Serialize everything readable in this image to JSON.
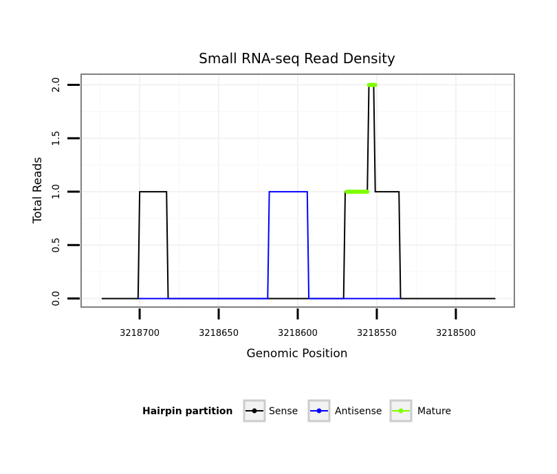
{
  "chart_data": {
    "type": "line",
    "title": "Small RNA-seq Read Density",
    "xlabel": "Genomic Position",
    "ylabel": "Total Reads",
    "x_reversed": true,
    "xlim": [
      3218737,
      3218463
    ],
    "ylim": [
      -0.08,
      2.1
    ],
    "x_ticks": [
      3218700,
      3218650,
      3218600,
      3218550,
      3218500
    ],
    "x_tick_labels": [
      "3218700",
      "3218650",
      "3218600",
      "3218550",
      "3218500"
    ],
    "y_ticks": [
      0,
      0.5,
      1,
      1.5,
      2
    ],
    "y_tick_labels": [
      "0.0",
      "0.5",
      "1.0",
      "1.5",
      "2.0"
    ],
    "grid": true,
    "legend": {
      "title": "Hairpin partition",
      "position": "bottom",
      "entries": [
        "Sense",
        "Antisense",
        "Mature"
      ]
    },
    "series": [
      {
        "name": "Sense",
        "color": "#000000",
        "x": [
          3218724,
          3218701,
          3218700,
          3218683,
          3218682,
          3218571,
          3218570,
          3218556,
          3218555,
          3218552,
          3218551,
          3218546,
          3218545,
          3218536,
          3218535,
          3218475
        ],
        "y": [
          0,
          0,
          1,
          1,
          0,
          0,
          1,
          1,
          2,
          2,
          1,
          1,
          1,
          1,
          0,
          0
        ]
      },
      {
        "name": "Antisense",
        "color": "#0000ff",
        "x": [
          3218701,
          3218683,
          3218619,
          3218618,
          3218594,
          3218593,
          3218571,
          3218535
        ],
        "y": [
          0,
          0,
          0,
          1,
          1,
          0,
          0,
          0
        ]
      },
      {
        "name": "Mature",
        "color": "#7fff00",
        "segments": [
          {
            "x": [
              3218569,
              3218556
            ],
            "y": [
              1,
              1
            ]
          },
          {
            "x": [
              3218555,
              3218551
            ],
            "y": [
              2,
              2
            ]
          }
        ]
      }
    ]
  }
}
